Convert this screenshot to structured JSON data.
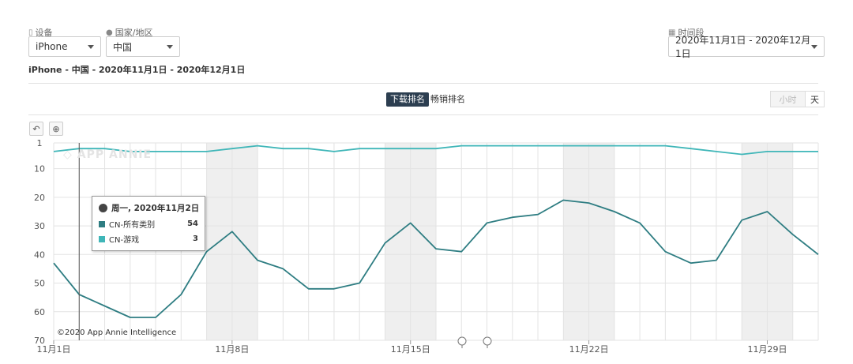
{
  "filters": {
    "device": {
      "label": "设备",
      "icon": "mobile-icon",
      "value": "iPhone"
    },
    "country": {
      "label": "国家/地区",
      "icon": "globe-icon",
      "value": "中国"
    },
    "period": {
      "label": "时间段",
      "icon": "calendar-icon",
      "value": "2020年11月1日 - 2020年12月1日"
    }
  },
  "subtitle": "iPhone - 中国 - 2020年11月1日 - 2020年12月1日",
  "tabs": [
    "下载排名",
    "畅销排名"
  ],
  "active_tab": "下载排名",
  "granularity": {
    "hour": "小时",
    "day": "天",
    "selected": "天"
  },
  "tools": {
    "reset_icon": "undo-icon",
    "zoom_icon": "zoom-icon"
  },
  "watermark": "APP ANNIE",
  "copyright": "©2020 App Annie Intelligence",
  "tooltip": {
    "header": "周一, 2020年11月2日",
    "rows": [
      {
        "name": "CN-所有类别",
        "value": "54",
        "color": "#2e7d82"
      },
      {
        "name": "CN-游戏",
        "value": "3",
        "color": "#3fb6b8"
      }
    ]
  },
  "chart_data": {
    "type": "line",
    "title": "",
    "xlabel": "",
    "ylabel": "",
    "y_reversed": true,
    "ylim": [
      1,
      70
    ],
    "yticks": [
      1,
      10,
      20,
      30,
      40,
      50,
      60,
      70
    ],
    "x": [
      "11月1日",
      "11月2日",
      "11月3日",
      "11月4日",
      "11月5日",
      "11月6日",
      "11月7日",
      "11月8日",
      "11月9日",
      "11月10日",
      "11月11日",
      "11月12日",
      "11月13日",
      "11月14日",
      "11月15日",
      "11月16日",
      "11月17日",
      "11月18日",
      "11月19日",
      "11月20日",
      "11月21日",
      "11月22日",
      "11月23日",
      "11月24日",
      "11月25日",
      "11月26日",
      "11月27日",
      "11月28日",
      "11月29日",
      "11月30日",
      "12月1日"
    ],
    "xtick_labels": [
      {
        "index": 0,
        "label": "11月1日"
      },
      {
        "index": 7,
        "label": "11月8日"
      },
      {
        "index": 14,
        "label": "11月15日"
      },
      {
        "index": 21,
        "label": "11月22日"
      },
      {
        "index": 28,
        "label": "11月29日"
      }
    ],
    "weekend_bands": [
      [
        6,
        8
      ],
      [
        13,
        15
      ],
      [
        20,
        22
      ],
      [
        27,
        29
      ]
    ],
    "hover_index": 1,
    "series": [
      {
        "name": "CN-所有类别",
        "color": "#2e7d82",
        "values": [
          43,
          54,
          58,
          62,
          62,
          54,
          39,
          32,
          42,
          45,
          52,
          52,
          50,
          36,
          29,
          38,
          39,
          29,
          27,
          26,
          21,
          22,
          25,
          29,
          39,
          43,
          42,
          28,
          25,
          33,
          40
        ]
      },
      {
        "name": "CN-游戏",
        "color": "#3fb6b8",
        "values": [
          4,
          3,
          3,
          4,
          4,
          4,
          4,
          3,
          2,
          3,
          3,
          4,
          3,
          3,
          3,
          3,
          2,
          2,
          2,
          2,
          2,
          2,
          2,
          2,
          2,
          3,
          4,
          5,
          4,
          4,
          4
        ]
      }
    ]
  }
}
